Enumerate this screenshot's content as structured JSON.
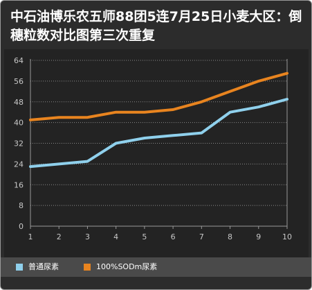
{
  "chart_data": {
    "type": "line",
    "title": "中石油博乐农五师88团5连7月25日小麦大区：倒穗粒数对比图第三次重复",
    "x": [
      1,
      2,
      3,
      4,
      5,
      6,
      7,
      8,
      9,
      10
    ],
    "xticks": [
      "1",
      "2",
      "3",
      "4",
      "5",
      "6",
      "7",
      "8",
      "9",
      "10"
    ],
    "yticks": [
      "0",
      "8",
      "16",
      "24",
      "32",
      "40",
      "48",
      "56",
      "64"
    ],
    "ylim": [
      0,
      64
    ],
    "xlabel": "",
    "ylabel": "",
    "grid": "horizontal dotted",
    "legend_position": "bottom-left",
    "series": [
      {
        "name": "普通尿素",
        "color": "#8fd0ec",
        "values": [
          23,
          24,
          25,
          32,
          34,
          35,
          36,
          44,
          46,
          49
        ]
      },
      {
        "name": "100%SODm尿素",
        "color": "#e8841f",
        "values": [
          41,
          42,
          42,
          44,
          44,
          45,
          48,
          52,
          56,
          59
        ]
      }
    ]
  }
}
